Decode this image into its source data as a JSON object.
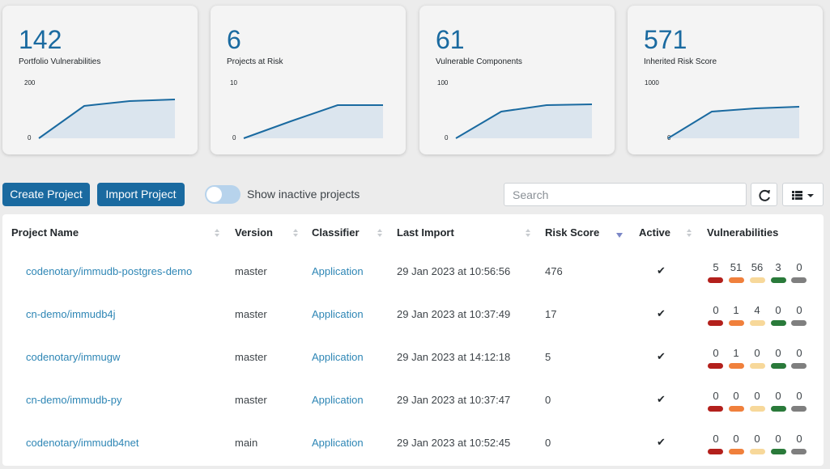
{
  "colors": {
    "accent": "#1a6aa0",
    "link": "#2e86b5",
    "critical": "#b3201c",
    "high": "#f0803c",
    "medium": "#f7d89a",
    "low": "#2a7a3a",
    "unassigned": "#7f7f7f",
    "sparkline": "#1a6aa0",
    "sparkfill": "#dbe5ee"
  },
  "cards": [
    {
      "value": "142",
      "label": "Portfolio Vulnerabilities",
      "ymax_label": "200",
      "ymin_label": "0"
    },
    {
      "value": "6",
      "label": "Projects at Risk",
      "ymax_label": "10",
      "ymin_label": "0"
    },
    {
      "value": "61",
      "label": "Vulnerable Components",
      "ymax_label": "100",
      "ymin_label": "0"
    },
    {
      "value": "571",
      "label": "Inherited Risk Score",
      "ymax_label": "1000",
      "ymin_label": "0"
    }
  ],
  "toolbar": {
    "create_label": "Create Project",
    "import_label": "Import Project",
    "toggle_label": "Show inactive projects",
    "toggle_on": false,
    "search_placeholder": "Search",
    "refresh_icon": "refresh-icon",
    "columns_icon": "column-list-icon"
  },
  "table": {
    "headers": {
      "name": "Project Name",
      "version": "Version",
      "classifier": "Classifier",
      "last_import": "Last Import",
      "risk": "Risk Score",
      "active": "Active",
      "vulns": "Vulnerabilities"
    },
    "rows": [
      {
        "name": "codenotary/immudb-postgres-demo",
        "version": "master",
        "classifier": "Application",
        "last_import": "29 Jan 2023 at 10:56:56",
        "risk": "476",
        "active": "✔",
        "vulns": [
          "5",
          "51",
          "56",
          "3",
          "0"
        ]
      },
      {
        "name": "cn-demo/immudb4j",
        "version": "master",
        "classifier": "Application",
        "last_import": "29 Jan 2023 at 10:37:49",
        "risk": "17",
        "active": "✔",
        "vulns": [
          "0",
          "1",
          "4",
          "0",
          "0"
        ]
      },
      {
        "name": "codenotary/immugw",
        "version": "master",
        "classifier": "Application",
        "last_import": "29 Jan 2023 at 14:12:18",
        "risk": "5",
        "active": "✔",
        "vulns": [
          "0",
          "1",
          "0",
          "0",
          "0"
        ]
      },
      {
        "name": "cn-demo/immudb-py",
        "version": "master",
        "classifier": "Application",
        "last_import": "29 Jan 2023 at 10:37:47",
        "risk": "0",
        "active": "✔",
        "vulns": [
          "0",
          "0",
          "0",
          "0",
          "0"
        ]
      },
      {
        "name": "codenotary/immudb4net",
        "version": "main",
        "classifier": "Application",
        "last_import": "29 Jan 2023 at 10:52:45",
        "risk": "0",
        "active": "✔",
        "vulns": [
          "0",
          "0",
          "0",
          "0",
          "0"
        ]
      }
    ]
  }
}
